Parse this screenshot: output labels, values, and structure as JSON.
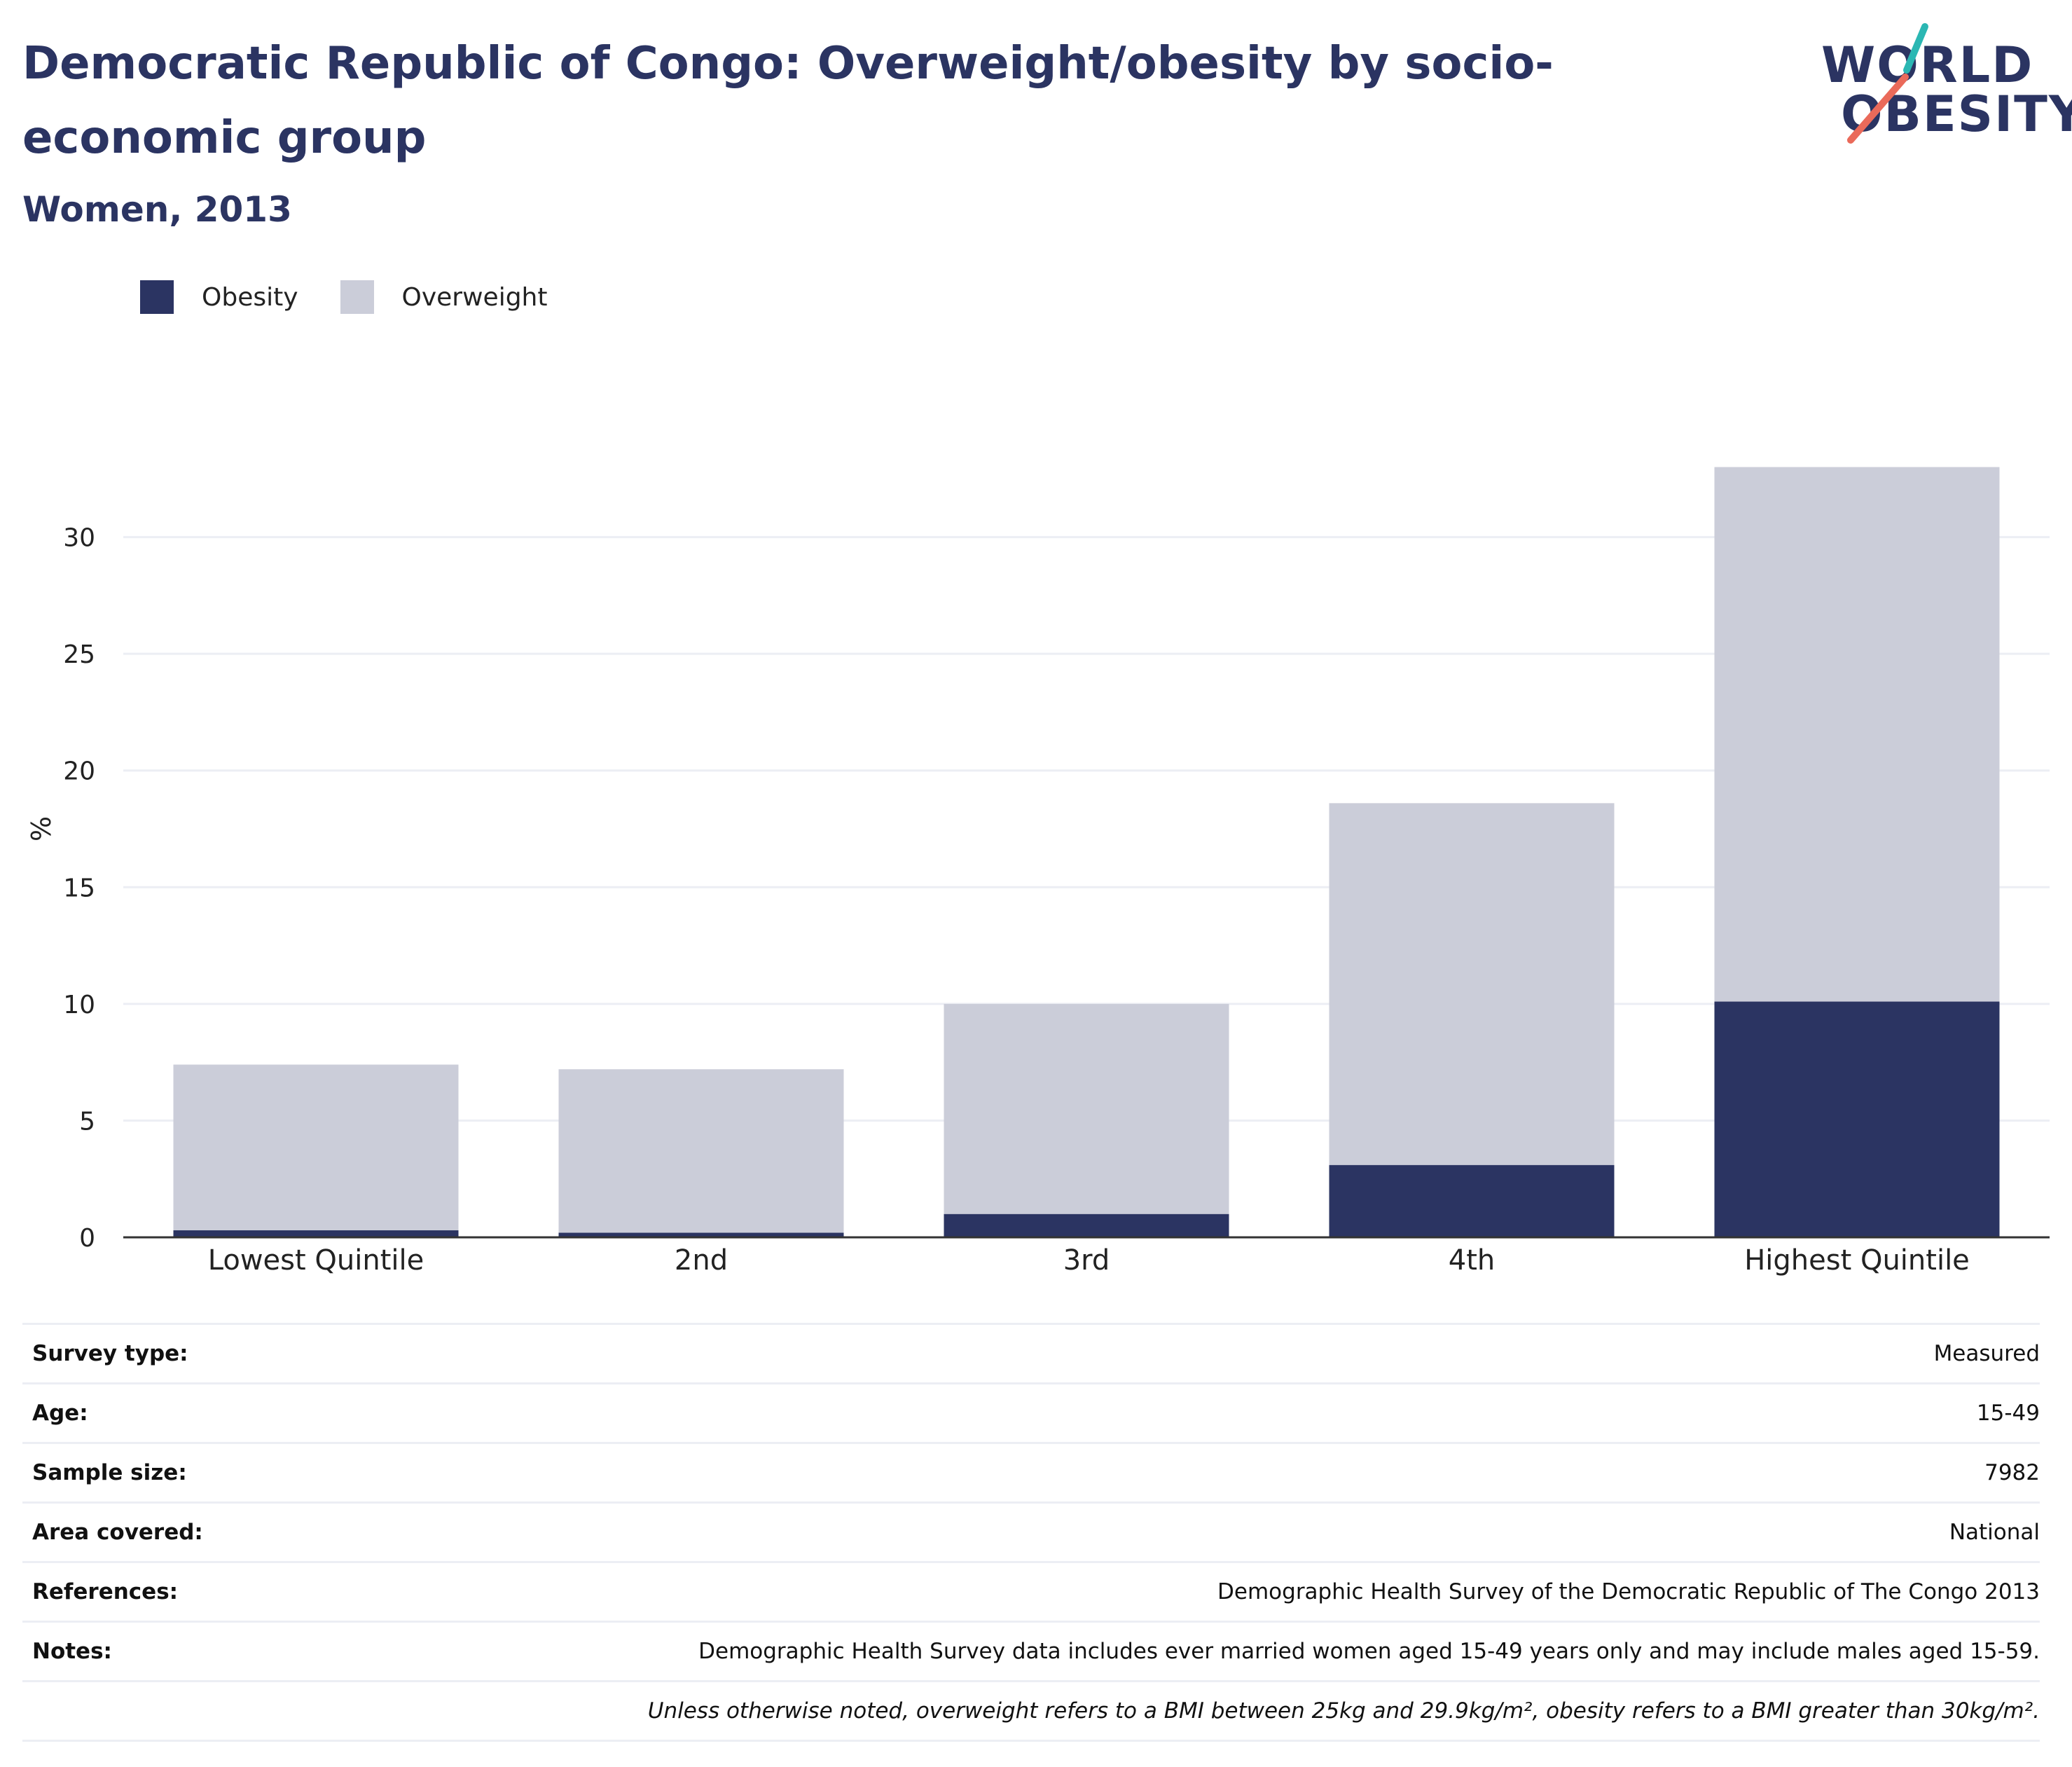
{
  "header": {
    "title": "Democratic Republic of Congo: Overweight/obesity by socio-economic group",
    "subtitle": "Women, 2013"
  },
  "logo": {
    "line1": "WORLD",
    "line2": "OBESITY",
    "accent_teal": "#2bb7b3",
    "accent_coral": "#ea6a5a"
  },
  "colors": {
    "obesity": "#2b3462",
    "overweight": "#cbcdd9",
    "grid": "#eceef4",
    "axis": "#333333"
  },
  "chart_data": {
    "type": "bar",
    "stacked": true,
    "categories": [
      "Lowest Quintile",
      "2nd",
      "3rd",
      "4th",
      "Highest Quintile"
    ],
    "series": [
      {
        "name": "Obesity",
        "values": [
          0.3,
          0.2,
          1.0,
          3.1,
          10.1
        ]
      },
      {
        "name": "Overweight",
        "values": [
          7.1,
          7.0,
          9.0,
          15.5,
          22.9
        ]
      }
    ],
    "ylabel": "%",
    "yticks": [
      "0",
      "5",
      "10",
      "15",
      "20",
      "25",
      "30"
    ],
    "ylim": [
      0,
      35
    ],
    "grid": true,
    "legend_position": "top-left"
  },
  "meta": {
    "rows": [
      {
        "key": "Survey type:",
        "value": "Measured"
      },
      {
        "key": "Age:",
        "value": "15-49"
      },
      {
        "key": "Sample size:",
        "value": "7982"
      },
      {
        "key": "Area covered:",
        "value": "National"
      },
      {
        "key": "References:",
        "value": "Demographic Health Survey of the Democratic Republic of The Congo 2013"
      },
      {
        "key": "Notes:",
        "value": "Demographic Health Survey data includes ever married women aged 15-49 years only and may include males aged 15-59."
      }
    ],
    "footnote": "Unless otherwise noted, overweight refers to a BMI between 25kg and 29.9kg/m², obesity refers to a BMI greater than 30kg/m²."
  }
}
